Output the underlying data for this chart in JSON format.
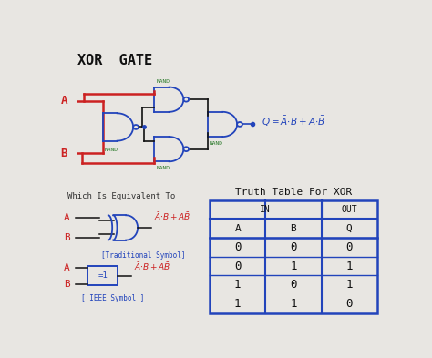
{
  "title": "XOR  GATE",
  "bg_color": "#e8e6e2",
  "title_color": "#111111",
  "title_fontsize": 11,
  "input_color": "#cc2222",
  "gate_color": "#2244bb",
  "wire_color": "#111111",
  "nand_color": "#2a7a2a",
  "equation_color": "#2244bb",
  "which_text": "Which Is Equivalent To",
  "which_fontsize": 6.5,
  "which_color": "#333333",
  "symbol_color": "#cc2222",
  "caption_color": "#2244bb",
  "trad_caption": "[Traditional Symbol]",
  "ieee_caption": "[ IEEE Symbol ]",
  "truth_title": "Truth Table For XOR",
  "truth_title_color": "#111111",
  "truth_title_fontsize": 8,
  "table_color": "#2244bb",
  "table_text_color": "#111111",
  "table_data": [
    [
      0,
      0,
      0
    ],
    [
      0,
      1,
      1
    ],
    [
      1,
      0,
      1
    ],
    [
      1,
      1,
      0
    ]
  ]
}
